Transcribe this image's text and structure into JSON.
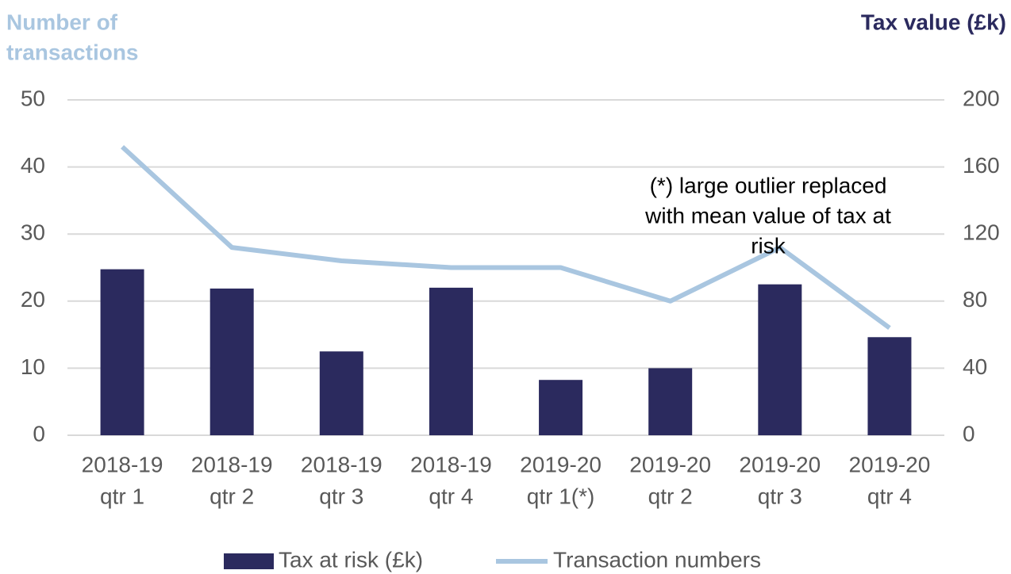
{
  "chart_data": {
    "type": "bar",
    "y_label": [
      "Number of",
      "transactions"
    ],
    "y2_label": "Tax value (£k)",
    "annotation": [
      "(*)  large outlier replaced",
      "with mean value of tax at",
      "risk"
    ],
    "categories": [
      [
        "2018-19",
        "qtr 1"
      ],
      [
        "2018-19",
        "qtr 2"
      ],
      [
        "2018-19",
        "qtr 3"
      ],
      [
        "2018-19",
        "qtr 4"
      ],
      [
        "2019-20",
        "qtr 1(*)"
      ],
      [
        "2019-20",
        "qtr 2"
      ],
      [
        "2019-20",
        "qtr 3"
      ],
      [
        "2019-20",
        "qtr 4"
      ]
    ],
    "series": [
      {
        "name": "Tax at risk (£k)",
        "type": "bar",
        "axis": "y2",
        "color": "#2b2a5e",
        "values": [
          99,
          87.5,
          50,
          88,
          33,
          40,
          90,
          58.5
        ]
      },
      {
        "name": "Transaction numbers",
        "type": "line",
        "axis": "y",
        "color": "#a9c6e0",
        "values": [
          43,
          28,
          26,
          25,
          25,
          20,
          28,
          16
        ]
      }
    ],
    "ylim": [
      0,
      50
    ],
    "yticks": [
      0,
      10,
      20,
      30,
      40,
      50
    ],
    "y2lim": [
      0,
      200
    ],
    "y2ticks": [
      0,
      40,
      80,
      120,
      160,
      200
    ],
    "grid": true
  }
}
